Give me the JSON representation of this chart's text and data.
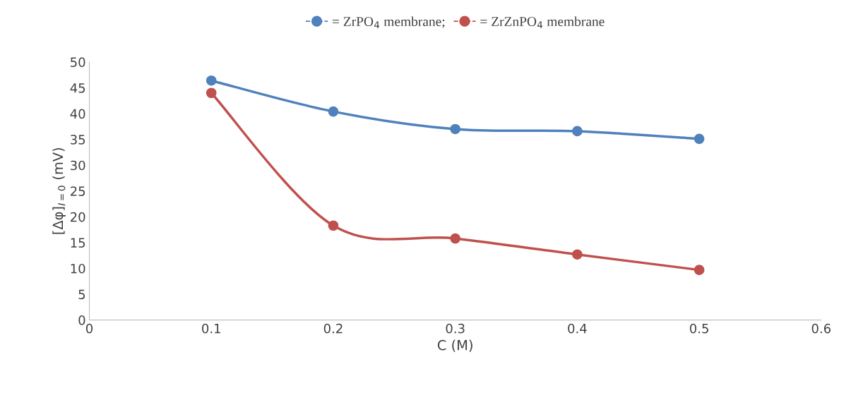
{
  "chart_data": {
    "type": "line",
    "xlabel": "C (M)",
    "ylabel": "[Δφ]$_{I=0}$ (mV)",
    "x": [
      0.1,
      0.2,
      0.3,
      0.4,
      0.5
    ],
    "series": [
      {
        "name": "= ZrPO$_{4}$ membrane;",
        "color": "#4f81bd",
        "values": [
          46.4,
          40.4,
          37.0,
          36.6,
          35.1
        ]
      },
      {
        "name": "= ZrZnPO$_{4}$ membrane",
        "color": "#c0504d",
        "values": [
          44.0,
          18.3,
          15.8,
          12.7,
          9.7
        ]
      }
    ],
    "xlim": [
      0,
      0.6
    ],
    "xticks": [
      0,
      0.1,
      0.2,
      0.3,
      0.4,
      0.5,
      0.6
    ],
    "ylim": [
      0,
      50
    ],
    "yticks": [
      0,
      5,
      10,
      15,
      20,
      25,
      30,
      35,
      40,
      45,
      50
    ],
    "marker": "circle",
    "line_style": "solid",
    "grid": false,
    "legend": "top"
  }
}
